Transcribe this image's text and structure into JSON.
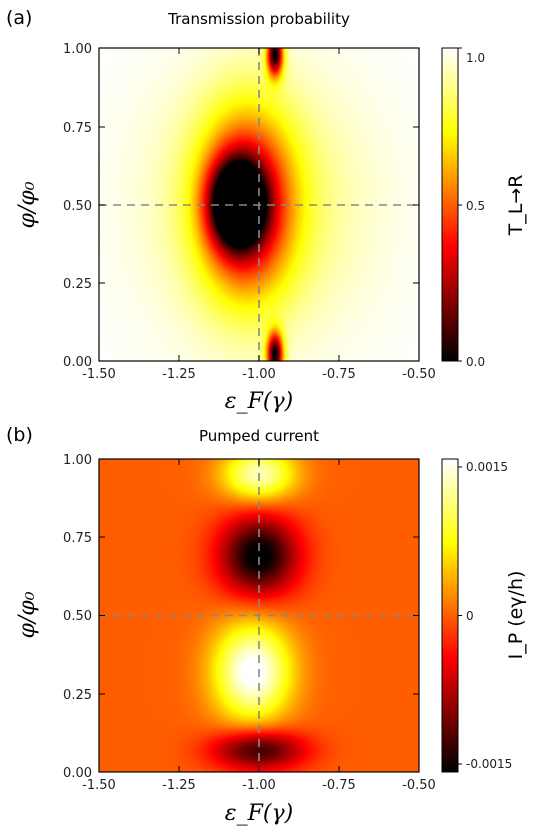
{
  "chart_data": [
    {
      "type": "heatmap",
      "panel_tag": "(a)",
      "title": "Transmission probability",
      "xlabel": "ε_F(γ)",
      "ylabel": "φ/φ₀",
      "xlim": [
        -1.5,
        -0.5
      ],
      "ylim": [
        0.0,
        1.0
      ],
      "xticks": [
        "-1.50",
        "-1.25",
        "-1.00",
        "-0.75",
        "-0.50"
      ],
      "yticks": [
        "0.00",
        "0.25",
        "0.50",
        "0.75",
        "1.00"
      ],
      "colormap": "hot",
      "colorbar": {
        "label": "T_L→R",
        "min": 0.0,
        "max": 1.0,
        "ticks": [
          "0.0",
          "0.5",
          "1.0"
        ]
      },
      "guides": {
        "vertical_x": -1.0,
        "horizontal_y": 0.5,
        "style": "dashed gray"
      },
      "features": [
        {
          "kind": "minimum",
          "x": -1.07,
          "y": 0.5,
          "value": 0.0
        },
        {
          "kind": "minimum",
          "x": -0.95,
          "y": 0.02,
          "value": 0.0
        },
        {
          "kind": "minimum",
          "x": -0.95,
          "y": 0.98,
          "value": 0.0
        }
      ]
    },
    {
      "type": "heatmap",
      "panel_tag": "(b)",
      "title": "Pumped current",
      "xlabel": "ε_F(γ)",
      "ylabel": "φ/φ₀",
      "xlim": [
        -1.5,
        -0.5
      ],
      "ylim": [
        0.0,
        1.0
      ],
      "xticks": [
        "-1.50",
        "-1.25",
        "-1.00",
        "-0.75",
        "-0.50"
      ],
      "yticks": [
        "0.00",
        "0.25",
        "0.50",
        "0.75",
        "1.00"
      ],
      "colormap": "hot",
      "colorbar": {
        "label": "I_P (eγ/h)",
        "min": -0.0015,
        "max": 0.0015,
        "ticks": [
          "-0.0015",
          "0",
          "0.0015"
        ]
      },
      "guides": {
        "vertical_x": -1.0,
        "horizontal_y": 0.5,
        "style": "dashed gray"
      },
      "features": [
        {
          "kind": "maximum",
          "x": -1.0,
          "y": 0.95,
          "value": 0.0012
        },
        {
          "kind": "minimum",
          "x": -1.0,
          "y": 0.69,
          "value": -0.0015
        },
        {
          "kind": "maximum",
          "x": -1.02,
          "y": 0.32,
          "value": 0.0015
        },
        {
          "kind": "minimum",
          "x": -1.0,
          "y": 0.07,
          "value": -0.0012
        }
      ]
    }
  ]
}
